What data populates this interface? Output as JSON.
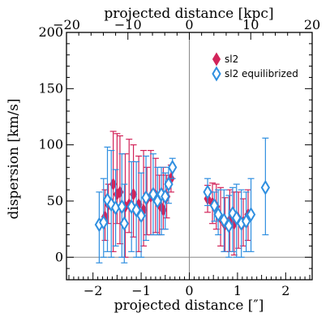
{
  "chart_data": {
    "type": "scatter",
    "xlabel": "projected distance [″]",
    "x2label": "projected distance [kpc]",
    "ylabel": "dispersion [km/s]",
    "xlim": [
      -2.55,
      2.55
    ],
    "ylim": [
      -20,
      200
    ],
    "x2lim": [
      -20,
      20
    ],
    "xticks": [
      "−2",
      "−1",
      "0",
      "1",
      "2"
    ],
    "yticks": [
      "0",
      "50",
      "100",
      "150",
      "200"
    ],
    "x2ticks": [
      "−20",
      "−10",
      "0",
      "10",
      "20"
    ],
    "grid": false,
    "reference_lines": {
      "x": 0,
      "y": 0
    },
    "legend_position": "top-right",
    "series": [
      {
        "name": "sl2",
        "color": "#d2245a",
        "marker": "filled-diamond",
        "points": [
          {
            "x": -1.75,
            "y": 36,
            "lo": 15,
            "hi": 60
          },
          {
            "x": -1.68,
            "y": 47,
            "lo": 30,
            "hi": 65
          },
          {
            "x": -1.58,
            "y": 65,
            "lo": 5,
            "hi": 112
          },
          {
            "x": -1.5,
            "y": 56,
            "lo": 30,
            "hi": 110
          },
          {
            "x": -1.44,
            "y": 58,
            "lo": 12,
            "hi": 108
          },
          {
            "x": -1.33,
            "y": 45,
            "lo": 0,
            "hi": 92
          },
          {
            "x": -1.25,
            "y": 47,
            "lo": 22,
            "hi": 105
          },
          {
            "x": -1.16,
            "y": 56,
            "lo": 18,
            "hi": 100
          },
          {
            "x": -1.05,
            "y": 47,
            "lo": 5,
            "hi": 90
          },
          {
            "x": -0.95,
            "y": 42,
            "lo": 10,
            "hi": 95
          },
          {
            "x": -0.88,
            "y": 52,
            "lo": 20,
            "hi": 80
          },
          {
            "x": -0.8,
            "y": 54,
            "lo": 20,
            "hi": 95
          },
          {
            "x": -0.7,
            "y": 55,
            "lo": 22,
            "hi": 88
          },
          {
            "x": -0.62,
            "y": 47,
            "lo": 20,
            "hi": 73
          },
          {
            "x": -0.54,
            "y": 42,
            "lo": 25,
            "hi": 80
          },
          {
            "x": -0.47,
            "y": 54,
            "lo": 35,
            "hi": 73
          },
          {
            "x": -0.38,
            "y": 70,
            "lo": 58,
            "hi": 82
          },
          {
            "x": 0.38,
            "y": 52,
            "lo": 40,
            "hi": 64
          },
          {
            "x": 0.48,
            "y": 48,
            "lo": 30,
            "hi": 66
          },
          {
            "x": 0.56,
            "y": 45,
            "lo": 25,
            "hi": 65
          },
          {
            "x": 0.65,
            "y": 35,
            "lo": 10,
            "hi": 62
          },
          {
            "x": 0.74,
            "y": 29,
            "lo": 5,
            "hi": 53
          },
          {
            "x": 0.84,
            "y": 33,
            "lo": 5,
            "hi": 60
          },
          {
            "x": 0.93,
            "y": 30,
            "lo": 2,
            "hi": 58
          },
          {
            "x": 1.02,
            "y": 34,
            "lo": 8,
            "hi": 58
          },
          {
            "x": 1.12,
            "y": 31,
            "lo": 10,
            "hi": 52
          },
          {
            "x": 1.22,
            "y": 38,
            "lo": 15,
            "hi": 60
          }
        ]
      },
      {
        "name": "sl2 equilibrized",
        "color": "#2f8fe0",
        "marker": "open-diamond",
        "points": [
          {
            "x": -1.87,
            "y": 29,
            "lo": -5,
            "hi": 58
          },
          {
            "x": -1.78,
            "y": 31,
            "lo": 0,
            "hi": 70
          },
          {
            "x": -1.7,
            "y": 51,
            "lo": 5,
            "hi": 98
          },
          {
            "x": -1.62,
            "y": 47,
            "lo": 0,
            "hi": 95
          },
          {
            "x": -1.53,
            "y": 44,
            "lo": 10,
            "hi": 78
          },
          {
            "x": -1.4,
            "y": 45,
            "lo": 0,
            "hi": 92
          },
          {
            "x": -1.35,
            "y": 30,
            "lo": -5,
            "hi": 65
          },
          {
            "x": -1.2,
            "y": 45,
            "lo": 5,
            "hi": 85
          },
          {
            "x": -1.1,
            "y": 42,
            "lo": 0,
            "hi": 85
          },
          {
            "x": -1.0,
            "y": 37,
            "lo": 0,
            "hi": 75
          },
          {
            "x": -0.9,
            "y": 53,
            "lo": 15,
            "hi": 90
          },
          {
            "x": -0.75,
            "y": 56,
            "lo": 20,
            "hi": 92
          },
          {
            "x": -0.66,
            "y": 50,
            "lo": 20,
            "hi": 80
          },
          {
            "x": -0.58,
            "y": 56,
            "lo": 20,
            "hi": 80
          },
          {
            "x": -0.5,
            "y": 54,
            "lo": 25,
            "hi": 75
          },
          {
            "x": -0.43,
            "y": 65,
            "lo": 48,
            "hi": 80
          },
          {
            "x": -0.35,
            "y": 80,
            "lo": 70,
            "hi": 88
          },
          {
            "x": 0.38,
            "y": 58,
            "lo": 46,
            "hi": 70
          },
          {
            "x": 0.52,
            "y": 46,
            "lo": 32,
            "hi": 58
          },
          {
            "x": 0.6,
            "y": 38,
            "lo": 20,
            "hi": 60
          },
          {
            "x": 0.72,
            "y": 33,
            "lo": 5,
            "hi": 60
          },
          {
            "x": 0.82,
            "y": 28,
            "lo": 0,
            "hi": 55
          },
          {
            "x": 0.9,
            "y": 39,
            "lo": 5,
            "hi": 62
          },
          {
            "x": 0.98,
            "y": 35,
            "lo": 0,
            "hi": 65
          },
          {
            "x": 1.08,
            "y": 30,
            "lo": 0,
            "hi": 60
          },
          {
            "x": 1.18,
            "y": 32,
            "lo": 5,
            "hi": 58
          },
          {
            "x": 1.28,
            "y": 38,
            "lo": 5,
            "hi": 70
          },
          {
            "x": 1.58,
            "y": 62,
            "lo": 20,
            "hi": 106
          }
        ]
      }
    ]
  }
}
